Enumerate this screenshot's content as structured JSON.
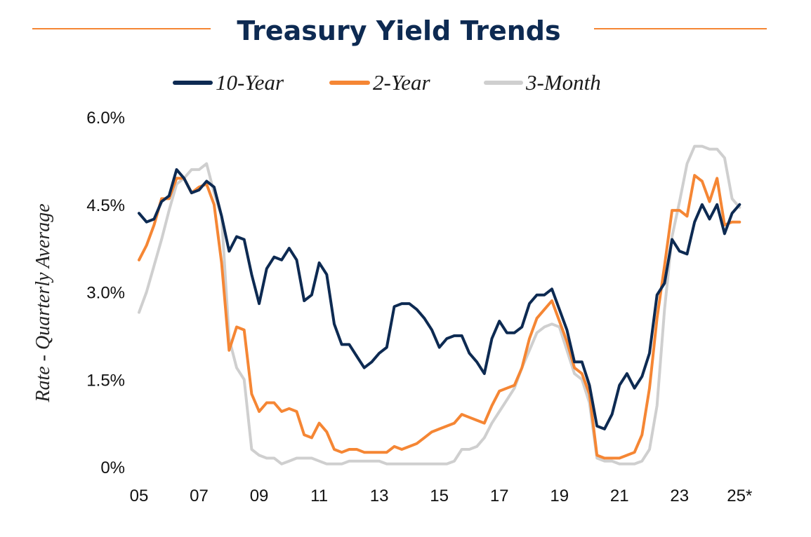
{
  "chart_data": {
    "type": "line",
    "title": "Treasury Yield Trends",
    "ylabel": "Rate - Quarterly Average",
    "xlabel": "",
    "ylim": [
      0,
      6.0
    ],
    "xlim": [
      2005.0,
      2025.25
    ],
    "y_ticks": [
      {
        "value": 0,
        "label": "0%"
      },
      {
        "value": 1.5,
        "label": "1.5%"
      },
      {
        "value": 3.0,
        "label": "3.0%"
      },
      {
        "value": 4.5,
        "label": "4.5%"
      },
      {
        "value": 6.0,
        "label": "6.0%"
      }
    ],
    "x_ticks": [
      {
        "value": 2005,
        "label": "05"
      },
      {
        "value": 2007,
        "label": "07"
      },
      {
        "value": 2009,
        "label": "09"
      },
      {
        "value": 2011,
        "label": "11"
      },
      {
        "value": 2013,
        "label": "13"
      },
      {
        "value": 2015,
        "label": "15"
      },
      {
        "value": 2017,
        "label": "17"
      },
      {
        "value": 2019,
        "label": "19"
      },
      {
        "value": 2021,
        "label": "21"
      },
      {
        "value": 2023,
        "label": "23"
      },
      {
        "value": 2025,
        "label": "25*"
      }
    ],
    "legend_position": "top",
    "grid": false,
    "x_start": 2005.0,
    "x_step": 0.25,
    "series": [
      {
        "name": "10-Year",
        "color": "#0d2a52",
        "values": [
          4.35,
          4.2,
          4.25,
          4.55,
          4.65,
          5.1,
          4.95,
          4.7,
          4.75,
          4.9,
          4.8,
          4.3,
          3.7,
          3.95,
          3.9,
          3.3,
          2.8,
          3.4,
          3.6,
          3.55,
          3.75,
          3.55,
          2.85,
          2.95,
          3.5,
          3.3,
          2.45,
          2.1,
          2.1,
          1.9,
          1.7,
          1.8,
          1.95,
          2.05,
          2.75,
          2.8,
          2.8,
          2.7,
          2.55,
          2.35,
          2.05,
          2.2,
          2.25,
          2.25,
          1.95,
          1.8,
          1.6,
          2.2,
          2.5,
          2.3,
          2.3,
          2.4,
          2.8,
          2.95,
          2.95,
          3.05,
          2.7,
          2.35,
          1.8,
          1.8,
          1.4,
          0.7,
          0.65,
          0.9,
          1.4,
          1.6,
          1.35,
          1.55,
          1.95,
          2.95,
          3.15,
          3.9,
          3.7,
          3.65,
          4.2,
          4.5,
          4.25,
          4.5,
          4.0,
          4.35,
          4.5
        ]
      },
      {
        "name": "2-Year",
        "color": "#f58634",
        "values": [
          3.55,
          3.8,
          4.15,
          4.6,
          4.6,
          4.95,
          4.95,
          4.7,
          4.8,
          4.85,
          4.5,
          3.5,
          2.0,
          2.4,
          2.35,
          1.25,
          0.95,
          1.1,
          1.1,
          0.95,
          1.0,
          0.95,
          0.55,
          0.5,
          0.75,
          0.6,
          0.3,
          0.25,
          0.3,
          0.3,
          0.25,
          0.25,
          0.25,
          0.25,
          0.35,
          0.3,
          0.35,
          0.4,
          0.5,
          0.6,
          0.65,
          0.7,
          0.75,
          0.9,
          0.85,
          0.8,
          0.75,
          1.05,
          1.3,
          1.35,
          1.4,
          1.7,
          2.2,
          2.55,
          2.7,
          2.85,
          2.5,
          2.15,
          1.7,
          1.6,
          1.25,
          0.2,
          0.15,
          0.15,
          0.15,
          0.2,
          0.25,
          0.55,
          1.35,
          2.55,
          3.45,
          4.4,
          4.4,
          4.3,
          5.0,
          4.9,
          4.55,
          4.95,
          4.15,
          4.2,
          4.2
        ]
      },
      {
        "name": "3-Month",
        "color": "#cfcfcf",
        "values": [
          2.65,
          3.0,
          3.45,
          3.9,
          4.4,
          4.85,
          4.95,
          5.1,
          5.1,
          5.2,
          4.7,
          4.3,
          2.2,
          1.7,
          1.5,
          0.3,
          0.2,
          0.15,
          0.15,
          0.05,
          0.1,
          0.15,
          0.15,
          0.15,
          0.1,
          0.05,
          0.05,
          0.05,
          0.1,
          0.1,
          0.1,
          0.1,
          0.1,
          0.05,
          0.05,
          0.05,
          0.05,
          0.05,
          0.05,
          0.05,
          0.05,
          0.05,
          0.1,
          0.3,
          0.3,
          0.35,
          0.5,
          0.75,
          0.95,
          1.15,
          1.35,
          1.7,
          2.0,
          2.3,
          2.4,
          2.45,
          2.4,
          2.0,
          1.6,
          1.5,
          1.1,
          0.15,
          0.1,
          0.1,
          0.05,
          0.05,
          0.05,
          0.1,
          0.3,
          1.05,
          2.7,
          3.95,
          4.55,
          5.2,
          5.5,
          5.5,
          5.45,
          5.45,
          5.3,
          4.6,
          4.45
        ]
      }
    ]
  }
}
